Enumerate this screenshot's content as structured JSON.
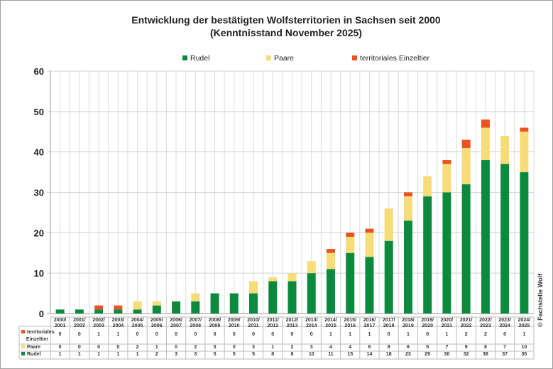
{
  "chart_data": {
    "type": "bar",
    "stacked": true,
    "title": "Entwicklung der bestätigten Wolfsterritorien in Sachsen seit 2000",
    "subtitle": "(Kenntnisstand November 2025)",
    "ylim": [
      0,
      60
    ],
    "yticks": [
      0,
      10,
      20,
      30,
      40,
      50,
      60
    ],
    "grid": true,
    "legend_position": "top",
    "categories": [
      "2000/2001",
      "2001/2002",
      "2002/2003",
      "2003/2004",
      "2004/2005",
      "2005/2006",
      "2006/2007",
      "2007/2008",
      "2008/2009",
      "2009/2010",
      "2010/2011",
      "2011/2012",
      "2012/2013",
      "2013/2014",
      "2014/2015",
      "2015/2016",
      "2016/2017",
      "2017/2018",
      "2018/2019",
      "2019/2020",
      "2020/2021",
      "2021/2022",
      "2022/2023",
      "2023/2024",
      "2024/2025"
    ],
    "series": [
      {
        "name": "Rudel",
        "color": "#0b8a3e",
        "values": [
          1,
          1,
          1,
          1,
          1,
          2,
          3,
          3,
          5,
          5,
          5,
          8,
          8,
          10,
          11,
          15,
          14,
          18,
          23,
          29,
          30,
          32,
          38,
          37,
          35
        ]
      },
      {
        "name": "Paare",
        "color": "#f7dc7a",
        "values": [
          0,
          0,
          0,
          0,
          2,
          1,
          0,
          2,
          0,
          0,
          3,
          1,
          2,
          3,
          4,
          4,
          6,
          8,
          6,
          5,
          7,
          9,
          8,
          7,
          10
        ]
      },
      {
        "name": "territoriales Einzeltier",
        "color": "#e8531f",
        "values": [
          0,
          0,
          1,
          1,
          0,
          0,
          0,
          0,
          0,
          0,
          0,
          0,
          0,
          0,
          1,
          1,
          1,
          0,
          1,
          0,
          1,
          2,
          2,
          0,
          1
        ]
      }
    ],
    "table_row_labels": [
      "territoriales Einzeltier",
      "Paare",
      "Rudel"
    ],
    "watermark": "© Fachstelle Wolf"
  }
}
